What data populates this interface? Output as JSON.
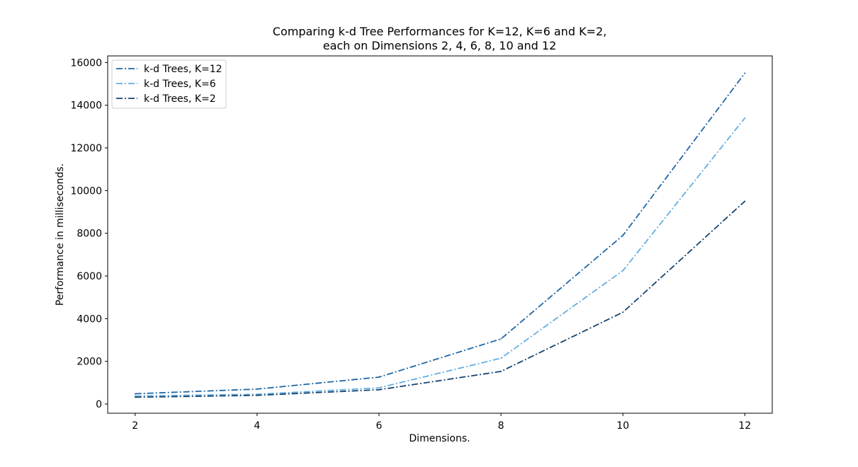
{
  "chart_data": {
    "type": "line",
    "title_line1": "Comparing k-d Tree Performances for K=12, K=6 and K=2,",
    "title_line2": "each on Dimensions 2, 4, 6, 8, 10 and 12",
    "xlabel": "Dimensions.",
    "ylabel": "Performance in milliseconds.",
    "x": [
      2,
      4,
      6,
      8,
      10,
      12
    ],
    "xlim": [
      1.55,
      12.45
    ],
    "ylim": [
      -430,
      16310
    ],
    "xticks": [
      2,
      4,
      6,
      8,
      10,
      12
    ],
    "yticks": [
      0,
      2000,
      4000,
      6000,
      8000,
      10000,
      12000,
      14000,
      16000
    ],
    "grid": false,
    "legend_position": "top-left",
    "line_style": "dash-dot",
    "series": [
      {
        "name": "k-d Trees, K=12",
        "color": "#1f66a6",
        "values": [
          480,
          700,
          1260,
          3050,
          7900,
          15500
        ]
      },
      {
        "name": "k-d Trees, K=6",
        "color": "#64aee0",
        "values": [
          380,
          460,
          760,
          2150,
          6250,
          13400
        ]
      },
      {
        "name": "k-d Trees, K=2",
        "color": "#15446f",
        "values": [
          320,
          410,
          670,
          1530,
          4300,
          9500
        ]
      }
    ]
  }
}
